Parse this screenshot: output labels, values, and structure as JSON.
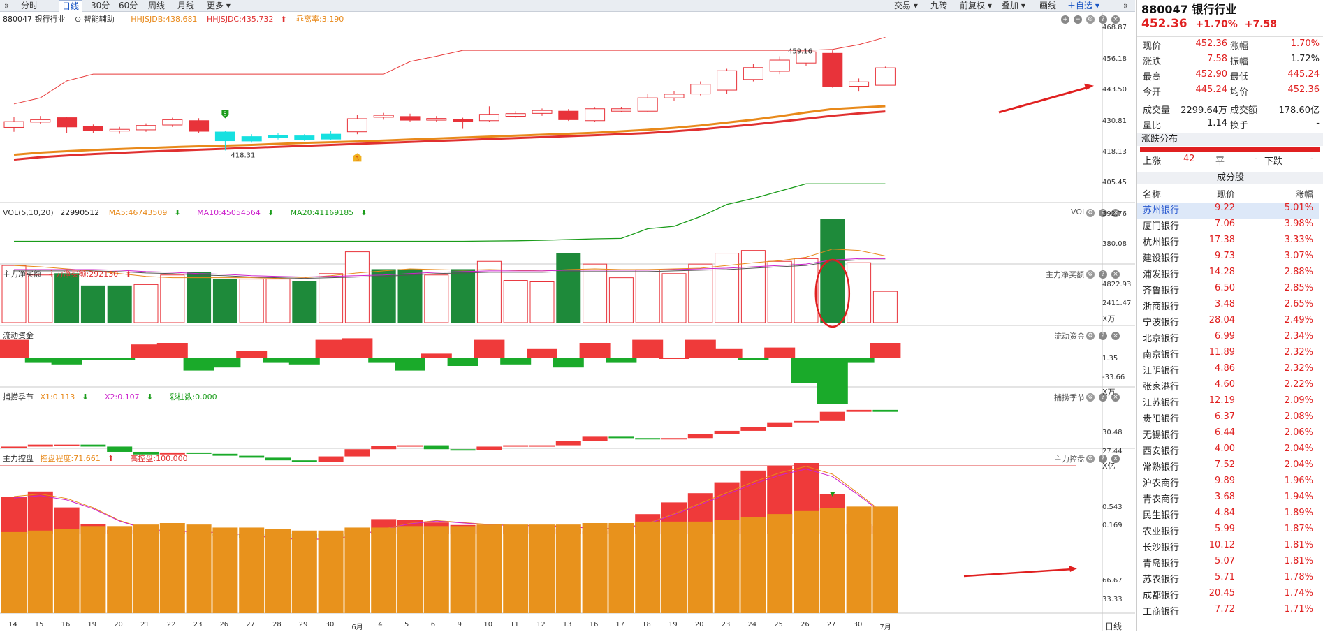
{
  "toolbar": {
    "left_items": [
      "分时",
      "日线",
      "30分",
      "60分",
      "周线",
      "月线",
      "更多"
    ],
    "right_items": [
      "交易",
      "九砖",
      "前复权",
      "叠加",
      "画线",
      "自选"
    ]
  },
  "main_panel": {
    "code_name": "880047 银行行业",
    "assist": "智能辅助",
    "ind1": "HHJSJDB:438.681",
    "ind2": "HHJSJDC:435.732",
    "ind3": "乖离率:3.190",
    "axis": [
      "468.87",
      "456.18",
      "443.50",
      "430.81",
      "418.13",
      "405.45",
      "392.76",
      "380.08"
    ],
    "annotations": {
      "high": "459.16",
      "low": "418.31",
      "buy": "B",
      "sell": "S"
    }
  },
  "vol_panel": {
    "title": "VOL(5,10,20)",
    "val": "22990512",
    "ma5": "MA5:46743509",
    "ma10": "MA10:45054564",
    "ma20": "MA20:41169185",
    "right": "VOL",
    "axis": [
      "4822.93",
      "2411.47",
      "X万"
    ]
  },
  "net_panel": {
    "title": "主力净买额",
    "val": "主力净买额:292130",
    "right": "主力净买额",
    "axis": [
      "1.35",
      "-33.66",
      "X万"
    ]
  },
  "flow_panel": {
    "title": "流动资金",
    "right": "流动资金",
    "axis": [
      "30.48",
      "27.44",
      "X亿"
    ]
  },
  "catch_panel": {
    "title": "捕捞季节",
    "x1": "X1:0.113",
    "x2": "X2:0.107",
    "bars": "彩柱数:0.000",
    "right": "捕捞季节",
    "axis": [
      "0.543",
      "0.169"
    ]
  },
  "control_panel": {
    "title": "主力控盘",
    "deg": "控盘程度:71.661",
    "high": "高控盘:100.000",
    "right": "主力控盘",
    "axis": [
      "66.67",
      "33.33"
    ]
  },
  "x_labels": [
    "14",
    "15",
    "16",
    "19",
    "20",
    "21",
    "22",
    "23",
    "26",
    "27",
    "28",
    "29",
    "30",
    "6月",
    "4",
    "5",
    "6",
    "9",
    "10",
    "11",
    "12",
    "13",
    "16",
    "17",
    "18",
    "19",
    "20",
    "23",
    "24",
    "25",
    "26",
    "27",
    "30",
    "7月"
  ],
  "x_unit": "日线",
  "candles": [
    {
      "o": 427.8,
      "c": 430.2,
      "h": 432.0,
      "l": 426.0
    },
    {
      "o": 430.0,
      "c": 431.0,
      "h": 432.5,
      "l": 429.2
    },
    {
      "o": 431.8,
      "c": 428.0,
      "h": 432.2,
      "l": 425.5
    },
    {
      "o": 428.3,
      "c": 426.4,
      "h": 429.0,
      "l": 425.6
    },
    {
      "o": 426.3,
      "c": 427.0,
      "h": 428.0,
      "l": 425.2
    },
    {
      "o": 426.8,
      "c": 428.6,
      "h": 429.5,
      "l": 426.0
    },
    {
      "o": 428.8,
      "c": 431.0,
      "h": 431.8,
      "l": 428.0
    },
    {
      "o": 430.6,
      "c": 426.2,
      "h": 431.6,
      "l": 425.5
    },
    {
      "o": 425.9,
      "c": 422.3,
      "h": 426.5,
      "l": 418.3
    },
    {
      "o": 422.2,
      "c": 424.0,
      "h": 425.0,
      "l": 421.5
    },
    {
      "o": 423.6,
      "c": 424.4,
      "h": 425.5,
      "l": 422.8
    },
    {
      "o": 424.3,
      "c": 422.8,
      "h": 425.0,
      "l": 422.2
    },
    {
      "o": 423.0,
      "c": 425.0,
      "h": 426.5,
      "l": 422.5
    },
    {
      "o": 426.0,
      "c": 431.4,
      "h": 433.0,
      "l": 425.0
    },
    {
      "o": 432.0,
      "c": 432.8,
      "h": 433.8,
      "l": 431.0
    },
    {
      "o": 432.3,
      "c": 430.8,
      "h": 433.5,
      "l": 430.0
    },
    {
      "o": 430.8,
      "c": 431.5,
      "h": 432.5,
      "l": 430.0
    },
    {
      "o": 431.0,
      "c": 430.3,
      "h": 431.8,
      "l": 427.2
    },
    {
      "o": 430.6,
      "c": 433.2,
      "h": 436.5,
      "l": 430.0
    },
    {
      "o": 432.4,
      "c": 433.5,
      "h": 434.5,
      "l": 431.8
    },
    {
      "o": 433.6,
      "c": 434.8,
      "h": 435.6,
      "l": 432.6
    },
    {
      "o": 434.5,
      "c": 431.0,
      "h": 435.4,
      "l": 430.5
    },
    {
      "o": 430.6,
      "c": 435.5,
      "h": 436.2,
      "l": 430.0
    },
    {
      "o": 434.5,
      "c": 435.5,
      "h": 436.3,
      "l": 434.0
    },
    {
      "o": 434.5,
      "c": 440.0,
      "h": 441.5,
      "l": 434.0
    },
    {
      "o": 440.0,
      "c": 441.5,
      "h": 442.8,
      "l": 438.8
    },
    {
      "o": 441.6,
      "c": 445.6,
      "h": 446.8,
      "l": 441.0
    },
    {
      "o": 443.2,
      "c": 451.2,
      "h": 452.0,
      "l": 441.6
    },
    {
      "o": 447.6,
      "c": 452.5,
      "h": 454.0,
      "l": 446.8
    },
    {
      "o": 451.0,
      "c": 455.6,
      "h": 457.2,
      "l": 449.8
    },
    {
      "o": 454.4,
      "c": 459.0,
      "h": 459.2,
      "l": 453.0
    },
    {
      "o": 458.4,
      "c": 444.8,
      "h": 459.6,
      "l": 444.2
    },
    {
      "o": 444.8,
      "c": 446.6,
      "h": 448.0,
      "l": 442.6
    },
    {
      "o": 445.2,
      "c": 452.4,
      "h": 452.9,
      "l": 445.2
    }
  ],
  "volumes": [
    {
      "v": 4200,
      "up": true
    },
    {
      "v": 3500,
      "up": true
    },
    {
      "v": 3600,
      "up": false
    },
    {
      "v": 2700,
      "up": false
    },
    {
      "v": 2700,
      "up": false
    },
    {
      "v": 2800,
      "up": true
    },
    {
      "v": 3500,
      "up": true
    },
    {
      "v": 3700,
      "up": false
    },
    {
      "v": 3200,
      "up": false
    },
    {
      "v": 3200,
      "up": true
    },
    {
      "v": 3200,
      "up": true
    },
    {
      "v": 3000,
      "up": false
    },
    {
      "v": 3600,
      "up": true
    },
    {
      "v": 5200,
      "up": true
    },
    {
      "v": 3900,
      "up": false
    },
    {
      "v": 3900,
      "up": false
    },
    {
      "v": 3500,
      "up": true
    },
    {
      "v": 3900,
      "up": false
    },
    {
      "v": 4500,
      "up": true
    },
    {
      "v": 3100,
      "up": true
    },
    {
      "v": 3000,
      "up": true
    },
    {
      "v": 5100,
      "up": false
    },
    {
      "v": 4300,
      "up": true
    },
    {
      "v": 3300,
      "up": true
    },
    {
      "v": 3900,
      "up": true
    },
    {
      "v": 3600,
      "up": true
    },
    {
      "v": 4300,
      "up": true
    },
    {
      "v": 5100,
      "up": true
    },
    {
      "v": 5300,
      "up": true
    },
    {
      "v": 4500,
      "up": true
    },
    {
      "v": 4700,
      "up": true
    },
    {
      "v": 7600,
      "up": false
    },
    {
      "v": 4400,
      "up": true
    },
    {
      "v": 2300,
      "up": true
    }
  ],
  "net_buy": [
    12,
    -3,
    -4,
    -1,
    -1,
    9,
    10,
    -8,
    -6,
    5,
    -3,
    -4,
    12,
    13,
    -3,
    -8,
    3,
    -5,
    12,
    -4,
    6,
    -6,
    10,
    -3,
    12,
    0,
    12,
    6,
    -1,
    7,
    -16,
    -30,
    -3,
    10
  ],
  "flow": [
    27.7,
    28.0,
    28.0,
    27.7,
    26.9,
    26.5,
    26.8,
    26.6,
    26.3,
    26.0,
    25.6,
    25.4,
    26.2,
    27.3,
    27.8,
    27.9,
    27.3,
    27.2,
    27.7,
    27.9,
    27.9,
    28.5,
    29.2,
    29.0,
    28.9,
    29.0,
    29.6,
    30.1,
    30.7,
    31.3,
    31.6,
    33.0,
    33.3,
    33.0
  ],
  "catch": [
    0.45,
    0.51,
    0.32,
    0.12,
    0.05,
    0.02,
    0.04,
    0.03,
    -0.02,
    -0.05,
    -0.08,
    -0.06,
    -0.03,
    0.04,
    0.18,
    0.17,
    0.14,
    0.11,
    0.1,
    0.11,
    0.11,
    0.06,
    0.04,
    0.11,
    0.24,
    0.38,
    0.49,
    0.62,
    0.76,
    0.82,
    0.85,
    0.48,
    0.12,
    0.1
  ],
  "control": [
    54,
    55,
    56,
    58,
    58,
    59,
    60,
    59,
    57,
    57,
    56,
    55,
    55,
    57,
    57,
    58,
    58,
    58,
    59,
    59,
    59,
    59,
    60,
    60,
    61,
    61,
    61,
    62,
    64,
    66,
    68,
    70,
    71,
    71
  ],
  "right_panel": {
    "title": "880047 银行行业",
    "price": "452.36",
    "pct": "+1.70%",
    "chg": "+7.58",
    "quotes": [
      {
        "l1": "现价",
        "v1": "452.36",
        "c1": "red",
        "l2": "涨幅",
        "v2": "1.70%",
        "c2": "red"
      },
      {
        "l1": "涨跌",
        "v1": "7.58",
        "c1": "red",
        "l2": "振幅",
        "v2": "1.72%",
        "c2": "dark"
      },
      {
        "l1": "最高",
        "v1": "452.90",
        "c1": "red",
        "l2": "最低",
        "v2": "445.24",
        "c2": "red"
      },
      {
        "l1": "今开",
        "v1": "445.24",
        "c1": "red",
        "l2": "均价",
        "v2": "452.36",
        "c2": "red"
      },
      {
        "l1": "成交量",
        "v1": "2299.64万",
        "c1": "dark",
        "l2": "成交额",
        "v2": "178.60亿",
        "c2": "dark"
      },
      {
        "l1": "量比",
        "v1": "1.14",
        "c1": "dark",
        "l2": "换手",
        "v2": "-",
        "c2": "dark"
      }
    ],
    "dist_title": "涨跌分布",
    "up_label": "上涨",
    "up_count": "42",
    "flat_label": "平",
    "flat_count": "-",
    "down_label": "下跌",
    "down_count": "-",
    "comp_title": "成分股",
    "cols": [
      "名称",
      "现价",
      "涨幅"
    ],
    "stocks": [
      {
        "n": "苏州银行",
        "p": "9.22",
        "c": "5.01%"
      },
      {
        "n": "厦门银行",
        "p": "7.06",
        "c": "3.98%"
      },
      {
        "n": "杭州银行",
        "p": "17.38",
        "c": "3.33%"
      },
      {
        "n": "建设银行",
        "p": "9.73",
        "c": "3.07%"
      },
      {
        "n": "浦发银行",
        "p": "14.28",
        "c": "2.88%"
      },
      {
        "n": "齐鲁银行",
        "p": "6.50",
        "c": "2.85%"
      },
      {
        "n": "浙商银行",
        "p": "3.48",
        "c": "2.65%"
      },
      {
        "n": "宁波银行",
        "p": "28.04",
        "c": "2.49%"
      },
      {
        "n": "北京银行",
        "p": "6.99",
        "c": "2.34%"
      },
      {
        "n": "南京银行",
        "p": "11.89",
        "c": "2.32%"
      },
      {
        "n": "江阴银行",
        "p": "4.86",
        "c": "2.32%"
      },
      {
        "n": "张家港行",
        "p": "4.60",
        "c": "2.22%"
      },
      {
        "n": "江苏银行",
        "p": "12.19",
        "c": "2.09%"
      },
      {
        "n": "贵阳银行",
        "p": "6.37",
        "c": "2.08%"
      },
      {
        "n": "无锡银行",
        "p": "6.44",
        "c": "2.06%"
      },
      {
        "n": "西安银行",
        "p": "4.00",
        "c": "2.04%"
      },
      {
        "n": "常熟银行",
        "p": "7.52",
        "c": "2.04%"
      },
      {
        "n": "沪农商行",
        "p": "9.89",
        "c": "1.96%"
      },
      {
        "n": "青农商行",
        "p": "3.68",
        "c": "1.94%"
      },
      {
        "n": "民生银行",
        "p": "4.84",
        "c": "1.89%"
      },
      {
        "n": "农业银行",
        "p": "5.99",
        "c": "1.87%"
      },
      {
        "n": "长沙银行",
        "p": "10.12",
        "c": "1.81%"
      },
      {
        "n": "青岛银行",
        "p": "5.07",
        "c": "1.81%"
      },
      {
        "n": "苏农银行",
        "p": "5.71",
        "c": "1.78%"
      },
      {
        "n": "成都银行",
        "p": "20.45",
        "c": "1.74%"
      },
      {
        "n": "工商银行",
        "p": "7.72",
        "c": "1.71%"
      }
    ]
  },
  "colors": {
    "up": "#e8333a",
    "down": "#1e8a3a",
    "ma_orange": "#e8891a",
    "ma_red": "#e03030",
    "bull": "#16e0e0",
    "ctrl": "#e8921c"
  }
}
